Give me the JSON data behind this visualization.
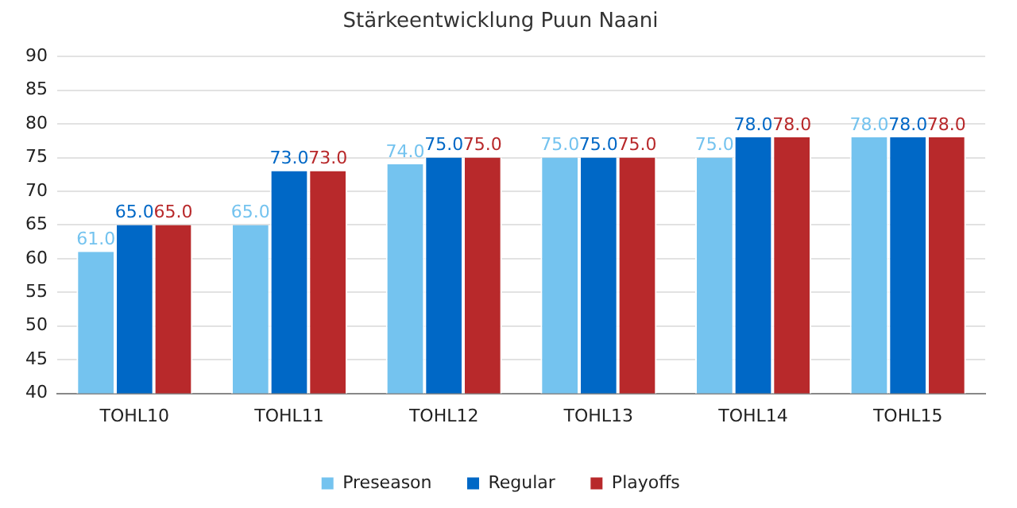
{
  "chart_data": {
    "type": "bar",
    "title": "Stärkeentwicklung Puun Naani",
    "categories": [
      "TOHL10",
      "TOHL11",
      "TOHL12",
      "TOHL13",
      "TOHL14",
      "TOHL15"
    ],
    "series": [
      {
        "name": "Preseason",
        "color": "#74c3ef",
        "values": [
          61,
          65,
          74,
          75,
          75,
          78
        ],
        "value_labels": [
          "61.0",
          "65.0",
          "74.0",
          "75.0",
          "75.0",
          "78.0"
        ]
      },
      {
        "name": "Regular",
        "color": "#0068c6",
        "values": [
          65,
          73,
          75,
          75,
          78,
          78
        ],
        "value_labels": [
          "65.0",
          "73.0",
          "75.0",
          "75.0",
          "78.0",
          "78.0"
        ]
      },
      {
        "name": "Playoffs",
        "color": "#b8292b",
        "values": [
          65,
          73,
          75,
          75,
          78,
          78
        ],
        "value_labels": [
          "65.0",
          "73.0",
          "75.0",
          "75.0",
          "78.0",
          "78.0"
        ]
      }
    ],
    "ylim": [
      40,
      90
    ],
    "yticks": [
      40,
      45,
      50,
      55,
      60,
      65,
      70,
      75,
      80,
      85,
      90
    ],
    "grid": "y",
    "legend": "bottom"
  }
}
